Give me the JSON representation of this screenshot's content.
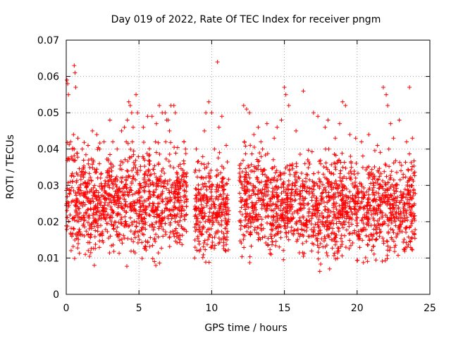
{
  "chart_data": {
    "type": "scatter",
    "title": "Day 019 of 2022, Rate Of TEC Index for receiver pngm",
    "xlabel": "GPS time / hours",
    "ylabel": "ROTI / TECUs",
    "xlim": [
      0,
      25
    ],
    "ylim": [
      0,
      0.07
    ],
    "x_ticks": [
      "0",
      "5",
      "10",
      "15",
      "20",
      "25"
    ],
    "y_ticks": [
      "0",
      "0.01",
      "0.02",
      "0.03",
      "0.04",
      "0.05",
      "0.06",
      "0.07"
    ],
    "grid": true,
    "marker": "+",
    "color": "#ff0000",
    "density_profile": [
      {
        "x_start": 0.0,
        "x_end": 8.3,
        "y_low": 0.006,
        "y_high": 0.042
      },
      {
        "x_start": 8.8,
        "x_end": 11.2,
        "y_low": 0.005,
        "y_high": 0.04
      },
      {
        "x_start": 11.9,
        "x_end": 13.9,
        "y_low": 0.005,
        "y_high": 0.042
      },
      {
        "x_start": 14.0,
        "x_end": 24.0,
        "y_low": 0.005,
        "y_high": 0.04
      }
    ],
    "series": [
      {
        "x": [
          0.05,
          0.1,
          0.15,
          0.55,
          0.6,
          0.65,
          0.2,
          0.3,
          0.5,
          0.55,
          0.8,
          1.1,
          1.5,
          1.8,
          2.1,
          2.3,
          2.6,
          3.0,
          3.2,
          3.5,
          3.8,
          4.0,
          4.2,
          4.3,
          4.4,
          4.5,
          4.6,
          4.8,
          4.9,
          5.3,
          5.6,
          5.9,
          6.2,
          6.4,
          6.6,
          6.8,
          6.9,
          7.0,
          7.1,
          7.2,
          7.4,
          7.5,
          8.1,
          8.2,
          9.3,
          9.5,
          9.6,
          9.8,
          10.0,
          10.4,
          10.5,
          10.7,
          11.0,
          12.2,
          12.4,
          12.6,
          12.9,
          13.2,
          13.5,
          13.8,
          14.3,
          14.5,
          14.8,
          15.0,
          15.1,
          15.3,
          15.8,
          16.3,
          17.0,
          17.3,
          17.8,
          18.0,
          18.5,
          18.8,
          19.0,
          19.2,
          19.5,
          19.9,
          20.3,
          20.8,
          21.4,
          21.8,
          22.0,
          22.1,
          22.3,
          22.5,
          22.9,
          23.4,
          23.6,
          23.8
        ],
        "y": [
          0.059,
          0.058,
          0.055,
          0.063,
          0.061,
          0.057,
          0.037,
          0.042,
          0.044,
          0.04,
          0.043,
          0.04,
          0.041,
          0.045,
          0.044,
          0.04,
          0.042,
          0.048,
          0.042,
          0.04,
          0.045,
          0.046,
          0.048,
          0.053,
          0.052,
          0.05,
          0.046,
          0.055,
          0.05,
          0.046,
          0.049,
          0.049,
          0.047,
          0.052,
          0.05,
          0.05,
          0.048,
          0.048,
          0.045,
          0.052,
          0.052,
          0.05,
          0.042,
          0.04,
          0.036,
          0.045,
          0.05,
          0.053,
          0.05,
          0.064,
          0.046,
          0.049,
          0.041,
          0.052,
          0.051,
          0.05,
          0.044,
          0.046,
          0.04,
          0.047,
          0.043,
          0.046,
          0.048,
          0.057,
          0.055,
          0.052,
          0.045,
          0.056,
          0.05,
          0.049,
          0.046,
          0.048,
          0.043,
          0.047,
          0.053,
          0.052,
          0.044,
          0.043,
          0.042,
          0.044,
          0.041,
          0.057,
          0.055,
          0.052,
          0.047,
          0.043,
          0.048,
          0.042,
          0.057,
          0.043
        ]
      }
    ]
  }
}
